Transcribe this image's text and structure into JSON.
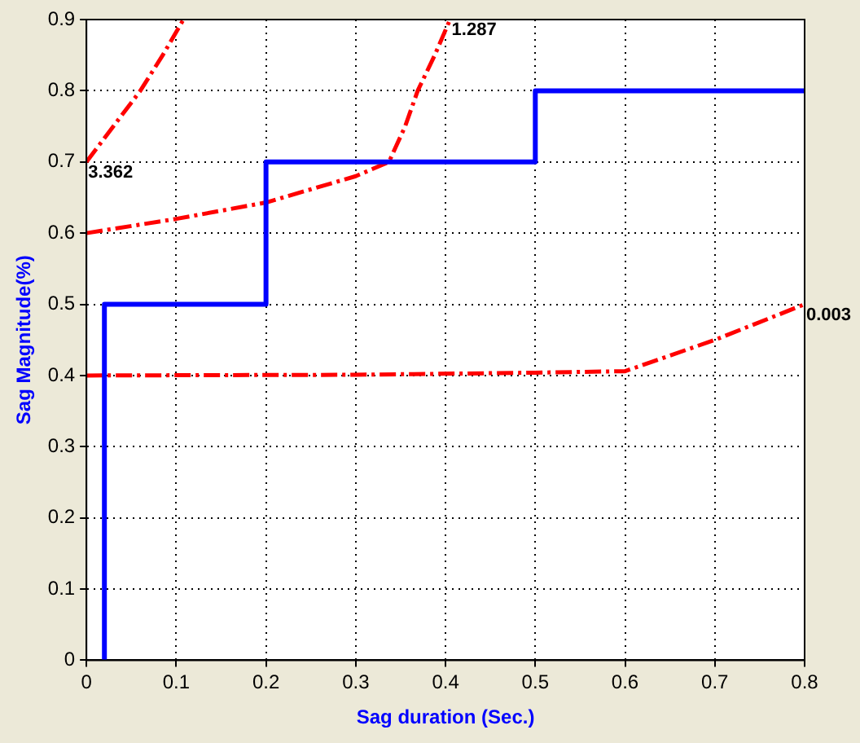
{
  "chart_data": {
    "type": "line",
    "xlabel": "Sag duration (Sec.)",
    "ylabel": "Sag Magnitude(%)",
    "xlim": [
      0,
      0.8
    ],
    "xticks": [
      0,
      0.1,
      0.2,
      0.3,
      0.4,
      0.5,
      0.6,
      0.7,
      0.8
    ],
    "ylim": [
      0,
      0.9
    ],
    "yticks": [
      0,
      0.1,
      0.2,
      0.3,
      0.4,
      0.5,
      0.6,
      0.7,
      0.8,
      0.9
    ],
    "grid": true,
    "legend": false,
    "marker": "none",
    "series": [
      {
        "color": "#0000ff",
        "line_style": "solid",
        "x": [
          0.02,
          0.02,
          0.2,
          0.2,
          0.5,
          0.5,
          0.8
        ],
        "values": [
          0,
          0.5,
          0.5,
          0.7,
          0.7,
          0.8,
          0.8
        ]
      },
      {
        "color": "#ff0000",
        "line_style": "dashed",
        "x": [
          0,
          0.03,
          0.06,
          0.085,
          0.108
        ],
        "values": [
          0.7,
          0.75,
          0.8,
          0.85,
          0.9
        ]
      },
      {
        "color": "#ff0000",
        "line_style": "dashed",
        "x": [
          0,
          0.1,
          0.2,
          0.3,
          0.337,
          0.355,
          0.369,
          0.388,
          0.405
        ],
        "values": [
          0.6,
          0.62,
          0.643,
          0.68,
          0.7,
          0.75,
          0.8,
          0.85,
          0.9
        ]
      },
      {
        "color": "#ff0000",
        "line_style": "dashed",
        "x": [
          0,
          0.3,
          0.5,
          0.6,
          0.7,
          0.8
        ],
        "values": [
          0.4,
          0.401,
          0.404,
          0.406,
          0.45,
          0.5
        ]
      }
    ],
    "annotations": [
      {
        "text": "3.362",
        "x": 0,
        "y": 0.7
      },
      {
        "text": "1.287",
        "x": 0.405,
        "y": 0.9
      },
      {
        "text": "0.003",
        "x": 0.8,
        "y": 0.5
      }
    ]
  }
}
